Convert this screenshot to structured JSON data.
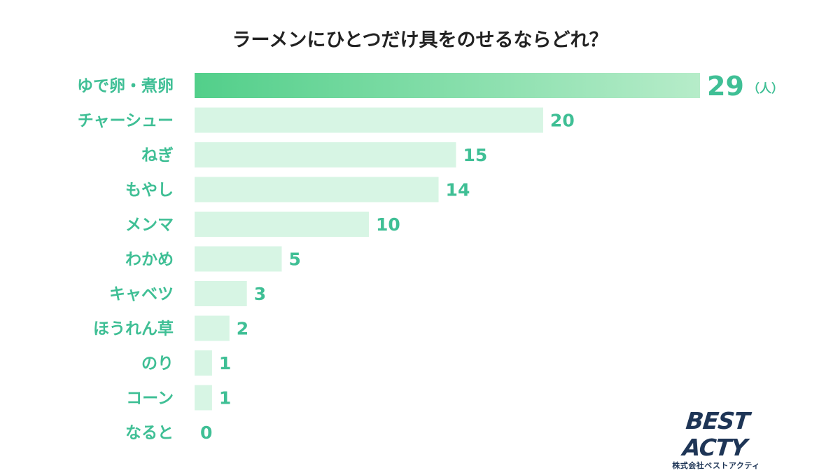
{
  "chart_data": {
    "type": "bar",
    "orientation": "horizontal",
    "title": "ラーメンにひとつだけ具をのせるならどれ？",
    "unit": "（人）",
    "categories": [
      "ゆで卵・煮卵",
      "チャーシュー",
      "ねぎ",
      "もやし",
      "メンマ",
      "わかめ",
      "キャベツ",
      "ほうれん草",
      "のり",
      "コーン",
      "なると"
    ],
    "values": [
      29,
      20,
      15,
      14,
      10,
      5,
      3,
      2,
      1,
      1,
      0
    ],
    "xlim": [
      0,
      29
    ],
    "grid": false,
    "legend": "none"
  },
  "colors": {
    "bar": "#d7f5e4",
    "bar_top_start": "#52cf8a",
    "bar_top_end": "#b6ecc9",
    "label": "#3fbf95",
    "title": "#222222",
    "logo": "#1e3556"
  },
  "logo": {
    "main": "BEST ACTY",
    "sub": "株式会社ベストアクティ"
  }
}
